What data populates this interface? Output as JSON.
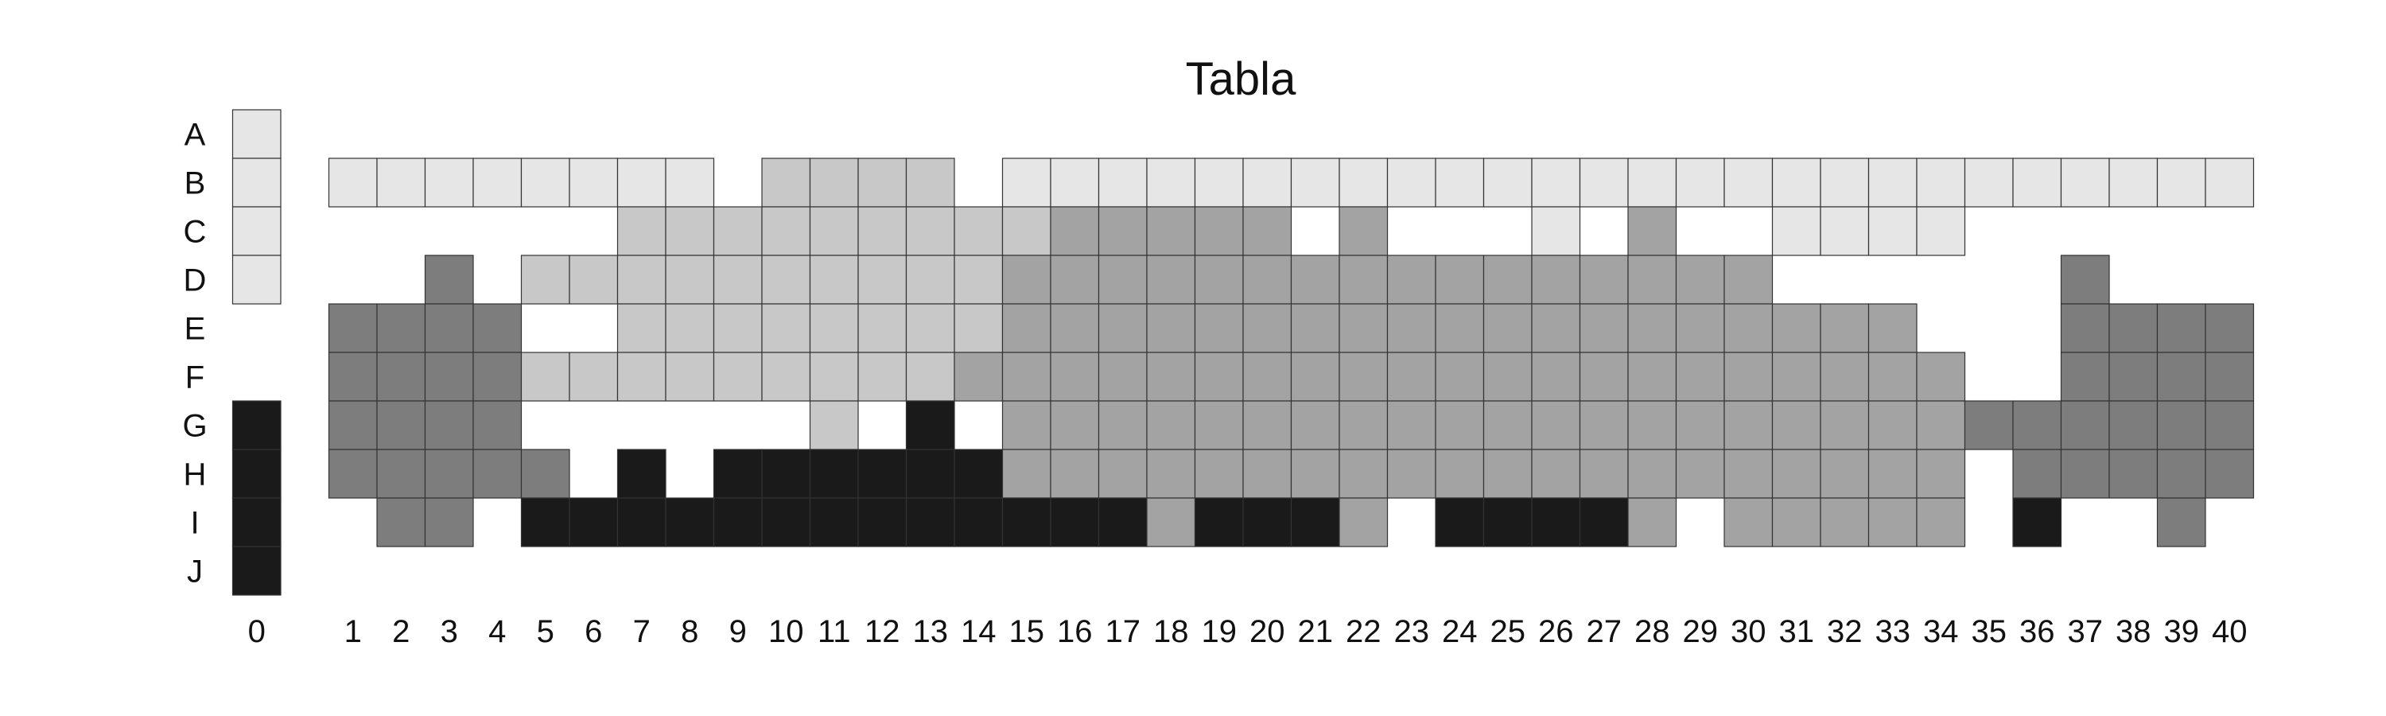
{
  "chart_data": {
    "type": "heatmap",
    "title": "Tabla",
    "xlabel": "",
    "ylabel": "",
    "grid": true,
    "legend": "none",
    "x_ticks": [
      "0",
      "1",
      "2",
      "3",
      "4",
      "5",
      "6",
      "7",
      "8",
      "9",
      "10",
      "11",
      "12",
      "13",
      "14",
      "15",
      "16",
      "17",
      "18",
      "19",
      "20",
      "21",
      "22",
      "23",
      "24",
      "25",
      "26",
      "27",
      "28",
      "29",
      "30",
      "31",
      "32",
      "33",
      "34",
      "35",
      "36",
      "37",
      "38",
      "39",
      "40"
    ],
    "y_ticks": [
      "A",
      "B",
      "C",
      "D",
      "E",
      "F",
      "G",
      "H",
      "I",
      "J"
    ],
    "levels": [
      {
        "value": 1,
        "color": "#e6e6e6"
      },
      {
        "value": 2,
        "color": "#c8c8c8"
      },
      {
        "value": 3,
        "color": "#a3a3a3"
      },
      {
        "value": 4,
        "color": "#7d7d7d"
      },
      {
        "value": 5,
        "color": "#1a1a1a"
      }
    ],
    "cell_border_color": "#333333",
    "rows": [
      {
        "label": "A",
        "values": [
          1,
          0,
          0,
          0,
          0,
          0,
          0,
          0,
          0,
          0,
          0,
          0,
          0,
          0,
          0,
          0,
          0,
          0,
          0,
          0,
          0,
          0,
          0,
          0,
          0,
          0,
          0,
          0,
          0,
          0,
          0,
          0,
          0,
          0,
          0,
          0,
          0,
          0,
          0,
          0,
          0
        ]
      },
      {
        "label": "B",
        "values": [
          1,
          1,
          1,
          1,
          1,
          1,
          1,
          1,
          1,
          0,
          2,
          2,
          2,
          2,
          0,
          1,
          1,
          1,
          1,
          1,
          1,
          1,
          1,
          1,
          1,
          1,
          1,
          1,
          1,
          1,
          1,
          1,
          1,
          1,
          1,
          1,
          1,
          1,
          1,
          1,
          1
        ]
      },
      {
        "label": "C",
        "values": [
          1,
          0,
          0,
          0,
          0,
          0,
          0,
          2,
          2,
          2,
          2,
          2,
          2,
          2,
          2,
          2,
          3,
          3,
          3,
          3,
          3,
          0,
          3,
          0,
          0,
          0,
          1,
          0,
          3,
          0,
          0,
          1,
          1,
          1,
          1,
          0,
          0,
          0,
          0,
          0,
          0
        ]
      },
      {
        "label": "D",
        "values": [
          1,
          0,
          0,
          4,
          0,
          2,
          2,
          2,
          2,
          2,
          2,
          2,
          2,
          2,
          2,
          3,
          3,
          3,
          3,
          3,
          3,
          3,
          3,
          3,
          3,
          3,
          3,
          3,
          3,
          3,
          3,
          0,
          0,
          0,
          0,
          0,
          0,
          4,
          0,
          0,
          0
        ]
      },
      {
        "label": "E",
        "values": [
          0,
          4,
          4,
          4,
          4,
          0,
          0,
          2,
          2,
          2,
          2,
          2,
          2,
          2,
          2,
          3,
          3,
          3,
          3,
          3,
          3,
          3,
          3,
          3,
          3,
          3,
          3,
          3,
          3,
          3,
          3,
          3,
          3,
          3,
          0,
          0,
          0,
          4,
          4,
          4,
          4
        ]
      },
      {
        "label": "F",
        "values": [
          0,
          4,
          4,
          4,
          4,
          2,
          2,
          2,
          2,
          2,
          2,
          2,
          2,
          2,
          3,
          3,
          3,
          3,
          3,
          3,
          3,
          3,
          3,
          3,
          3,
          3,
          3,
          3,
          3,
          3,
          3,
          3,
          3,
          3,
          3,
          0,
          0,
          4,
          4,
          4,
          4
        ]
      },
      {
        "label": "G",
        "values": [
          5,
          4,
          4,
          4,
          4,
          0,
          0,
          0,
          0,
          0,
          0,
          2,
          0,
          5,
          0,
          3,
          3,
          3,
          3,
          3,
          3,
          3,
          3,
          3,
          3,
          3,
          3,
          3,
          3,
          3,
          3,
          3,
          3,
          3,
          3,
          4,
          4,
          4,
          4,
          4,
          4
        ]
      },
      {
        "label": "H",
        "values": [
          5,
          4,
          4,
          4,
          4,
          4,
          0,
          5,
          0,
          5,
          5,
          5,
          5,
          5,
          5,
          3,
          3,
          3,
          3,
          3,
          3,
          3,
          3,
          3,
          3,
          3,
          3,
          3,
          3,
          3,
          3,
          3,
          3,
          3,
          3,
          0,
          4,
          4,
          4,
          4,
          4
        ]
      },
      {
        "label": "I",
        "values": [
          5,
          0,
          4,
          4,
          0,
          5,
          5,
          5,
          5,
          5,
          5,
          5,
          5,
          5,
          5,
          5,
          5,
          5,
          3,
          5,
          5,
          5,
          3,
          0,
          5,
          5,
          5,
          5,
          3,
          0,
          3,
          3,
          3,
          3,
          3,
          0,
          5,
          0,
          0,
          4,
          0
        ]
      },
      {
        "label": "J",
        "values": [
          5,
          0,
          0,
          0,
          0,
          0,
          0,
          0,
          0,
          0,
          0,
          0,
          0,
          0,
          0,
          0,
          0,
          0,
          0,
          0,
          0,
          0,
          0,
          0,
          0,
          0,
          0,
          0,
          0,
          0,
          0,
          0,
          0,
          0,
          0,
          0,
          0,
          0,
          0,
          0,
          0
        ]
      }
    ]
  }
}
